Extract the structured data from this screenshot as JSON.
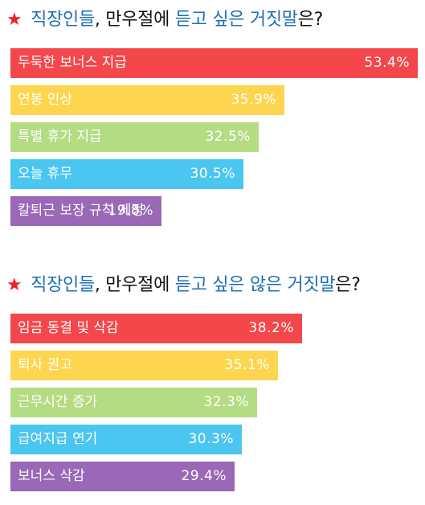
{
  "chart_data": [
    {
      "type": "bar",
      "orientation": "horizontal",
      "title_parts": [
        {
          "text": "★",
          "style": "star"
        },
        {
          "text": " 직장인들",
          "style": "hl"
        },
        {
          "text": ", 만우절에 ",
          "style": "plain"
        },
        {
          "text": "듣고 싶은 거짓말",
          "style": "hl"
        },
        {
          "text": "은?",
          "style": "plain"
        }
      ],
      "categories": [
        "두둑한 보너스 지급",
        "연봉 인상",
        "특별 휴가 지급",
        "오늘 휴무",
        "칼퇴근 보장 규칙 제정"
      ],
      "values": [
        53.4,
        35.9,
        32.5,
        30.5,
        19.8
      ],
      "value_labels": [
        "53.4%",
        "35.9%",
        "32.5%",
        "30.5%",
        "19.8%"
      ],
      "colors": [
        "#f4474b",
        "#fdd54f",
        "#b4dc83",
        "#4ac6f0",
        "#9a68b7"
      ]
    },
    {
      "type": "bar",
      "orientation": "horizontal",
      "title_parts": [
        {
          "text": "★",
          "style": "star"
        },
        {
          "text": " 직장인들",
          "style": "hl"
        },
        {
          "text": ", 만우절에 ",
          "style": "plain"
        },
        {
          "text": "듣고 싶은 않은 거짓말",
          "style": "hl"
        },
        {
          "text": "은?",
          "style": "plain"
        }
      ],
      "categories": [
        "임금 동결 및 삭감",
        "퇴사 권고",
        "근무시간 증가",
        "급여지급 연기",
        "보너스 삭감"
      ],
      "values": [
        38.2,
        35.1,
        32.3,
        30.3,
        29.4
      ],
      "value_labels": [
        "38.2%",
        "35.1%",
        "32.3%",
        "30.3%",
        "29.4%"
      ],
      "colors": [
        "#f4474b",
        "#fdd54f",
        "#b4dc83",
        "#4ac6f0",
        "#9a68b7"
      ]
    }
  ]
}
